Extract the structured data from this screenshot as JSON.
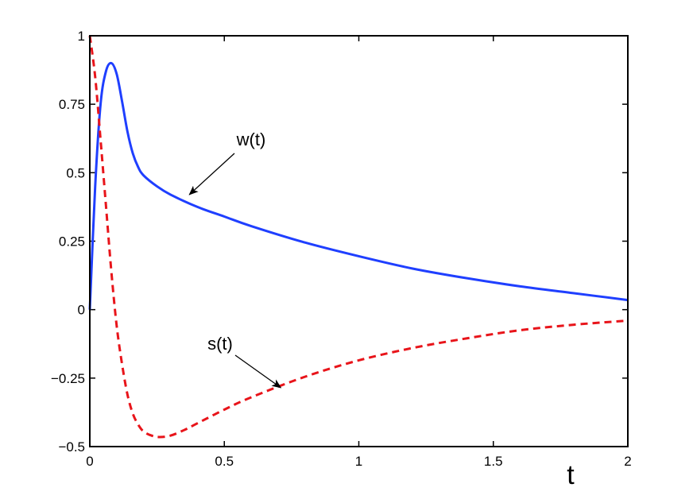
{
  "chart_data": {
    "type": "line",
    "title": "",
    "xlabel": "t",
    "ylabel": "",
    "xlim": [
      0,
      2
    ],
    "ylim": [
      -0.5,
      1
    ],
    "x_ticks": [
      {
        "value": 0,
        "label": "0"
      },
      {
        "value": 0.5,
        "label": "0.5"
      },
      {
        "value": 1,
        "label": "1"
      },
      {
        "value": 1.5,
        "label": "1.5"
      },
      {
        "value": 2,
        "label": "2"
      }
    ],
    "y_ticks": [
      {
        "value": -0.5,
        "label": "−0.5"
      },
      {
        "value": -0.25,
        "label": "−0.25"
      },
      {
        "value": 0,
        "label": "0"
      },
      {
        "value": 0.25,
        "label": "0.25"
      },
      {
        "value": 0.5,
        "label": "0.5"
      },
      {
        "value": 0.75,
        "label": "0.75"
      },
      {
        "value": 1,
        "label": "1"
      }
    ],
    "grid": false,
    "series": [
      {
        "color": "#1f3fff",
        "line_style": "solid",
        "x": [
          0,
          0.02,
          0.04,
          0.06,
          0.08,
          0.1,
          0.12,
          0.14,
          0.16,
          0.18,
          0.2,
          0.25,
          0.3,
          0.4,
          0.5,
          0.6,
          0.8,
          1.0,
          1.2,
          1.4,
          1.6,
          1.8,
          2.0
        ],
        "y": [
          0,
          0.45,
          0.75,
          0.87,
          0.9,
          0.86,
          0.76,
          0.65,
          0.57,
          0.52,
          0.49,
          0.45,
          0.42,
          0.375,
          0.34,
          0.305,
          0.245,
          0.195,
          0.15,
          0.115,
          0.085,
          0.06,
          0.035
        ]
      },
      {
        "color": "#e8141a",
        "line_style": "dashed",
        "x": [
          0,
          0.02,
          0.04,
          0.06,
          0.08,
          0.1,
          0.12,
          0.14,
          0.16,
          0.18,
          0.2,
          0.23,
          0.26,
          0.3,
          0.35,
          0.4,
          0.5,
          0.6,
          0.8,
          1.0,
          1.2,
          1.4,
          1.6,
          1.8,
          2.0
        ],
        "y": [
          1,
          0.85,
          0.62,
          0.38,
          0.14,
          -0.06,
          -0.2,
          -0.31,
          -0.38,
          -0.42,
          -0.445,
          -0.46,
          -0.465,
          -0.46,
          -0.44,
          -0.415,
          -0.365,
          -0.32,
          -0.245,
          -0.185,
          -0.14,
          -0.105,
          -0.075,
          -0.055,
          -0.04
        ]
      }
    ],
    "annotations": [
      {
        "text": "w(t)",
        "target": {
          "x": 0.37,
          "y": 0.42
        }
      },
      {
        "text": "s(t)",
        "target": {
          "x": 0.71,
          "y": -0.285
        }
      }
    ]
  }
}
